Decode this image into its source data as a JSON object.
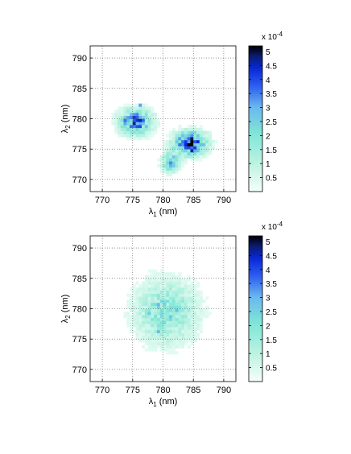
{
  "chart_data": [
    {
      "type": "heatmap",
      "xlabel": "λ1 (nm)",
      "ylabel": "λ2 (nm)",
      "xlim": [
        768,
        792
      ],
      "ylim": [
        768,
        792
      ],
      "x_ticks": [
        770,
        775,
        780,
        785,
        790
      ],
      "y_ticks": [
        770,
        775,
        780,
        785,
        790
      ],
      "grid": true,
      "grid_style": "dotted",
      "colorbar": {
        "min": 0,
        "max": 5.2,
        "multiplier": "x 10^-4",
        "ticks": [
          0.5,
          1,
          1.5,
          2,
          2.5,
          3,
          3.5,
          4,
          4.5,
          5
        ],
        "tick_labels": [
          "0.5",
          "1",
          "1.5",
          "2",
          "2.5",
          "3",
          "3.5",
          "4",
          "4.5",
          "5"
        ]
      },
      "distribution": "two anti-correlated lobes",
      "clusters": [
        {
          "x": 775.5,
          "y": 779.5,
          "sx": 1.8,
          "sy": 1.4,
          "peak": 3.6
        },
        {
          "x": 784.5,
          "y": 776,
          "sx": 1.8,
          "sy": 1.3,
          "peak": 4.4
        },
        {
          "x": 781.2,
          "y": 772.8,
          "sx": 0.9,
          "sy": 1.0,
          "peak": 3.1
        }
      ],
      "hotspots": [
        {
          "x": 785.0,
          "y": 775.0,
          "value": 4.6
        },
        {
          "x": 784.0,
          "y": 776.0,
          "value": 4.4
        },
        {
          "x": 776.0,
          "y": 778.8,
          "value": 3.9
        },
        {
          "x": 774.0,
          "y": 780.0,
          "value": 3.6
        },
        {
          "x": 781.3,
          "y": 772.8,
          "value": 3.4
        },
        {
          "x": 776.3,
          "y": 782.7,
          "value": 3.2
        }
      ]
    },
    {
      "type": "heatmap",
      "xlabel": "λ1 (nm)",
      "ylabel": "λ2 (nm)",
      "xlim": [
        768,
        792
      ],
      "ylim": [
        768,
        792
      ],
      "x_ticks": [
        770,
        775,
        780,
        785,
        790
      ],
      "y_ticks": [
        770,
        775,
        780,
        785,
        790
      ],
      "grid": true,
      "grid_style": "dotted",
      "colorbar": {
        "min": 0,
        "max": 5.2,
        "multiplier": "x 10^-4",
        "ticks": [
          0.5,
          1,
          1.5,
          2,
          2.5,
          3,
          3.5,
          4,
          4.5,
          5
        ],
        "tick_labels": [
          "0.5",
          "1",
          "1.5",
          "2",
          "2.5",
          "3",
          "3.5",
          "4",
          "4.5",
          "5"
        ]
      },
      "distribution": "broad uncorrelated blob",
      "clusters": [
        {
          "x": 780.5,
          "y": 779.5,
          "sx": 3.4,
          "sy": 3.4,
          "peak": 2.0
        }
      ],
      "hotspots": [
        {
          "x": 779.7,
          "y": 780.8,
          "value": 3.0
        },
        {
          "x": 779.7,
          "y": 776.6,
          "value": 3.0
        },
        {
          "x": 782.5,
          "y": 780.0,
          "value": 2.9
        },
        {
          "x": 778.0,
          "y": 779.5,
          "value": 2.6
        }
      ]
    }
  ]
}
